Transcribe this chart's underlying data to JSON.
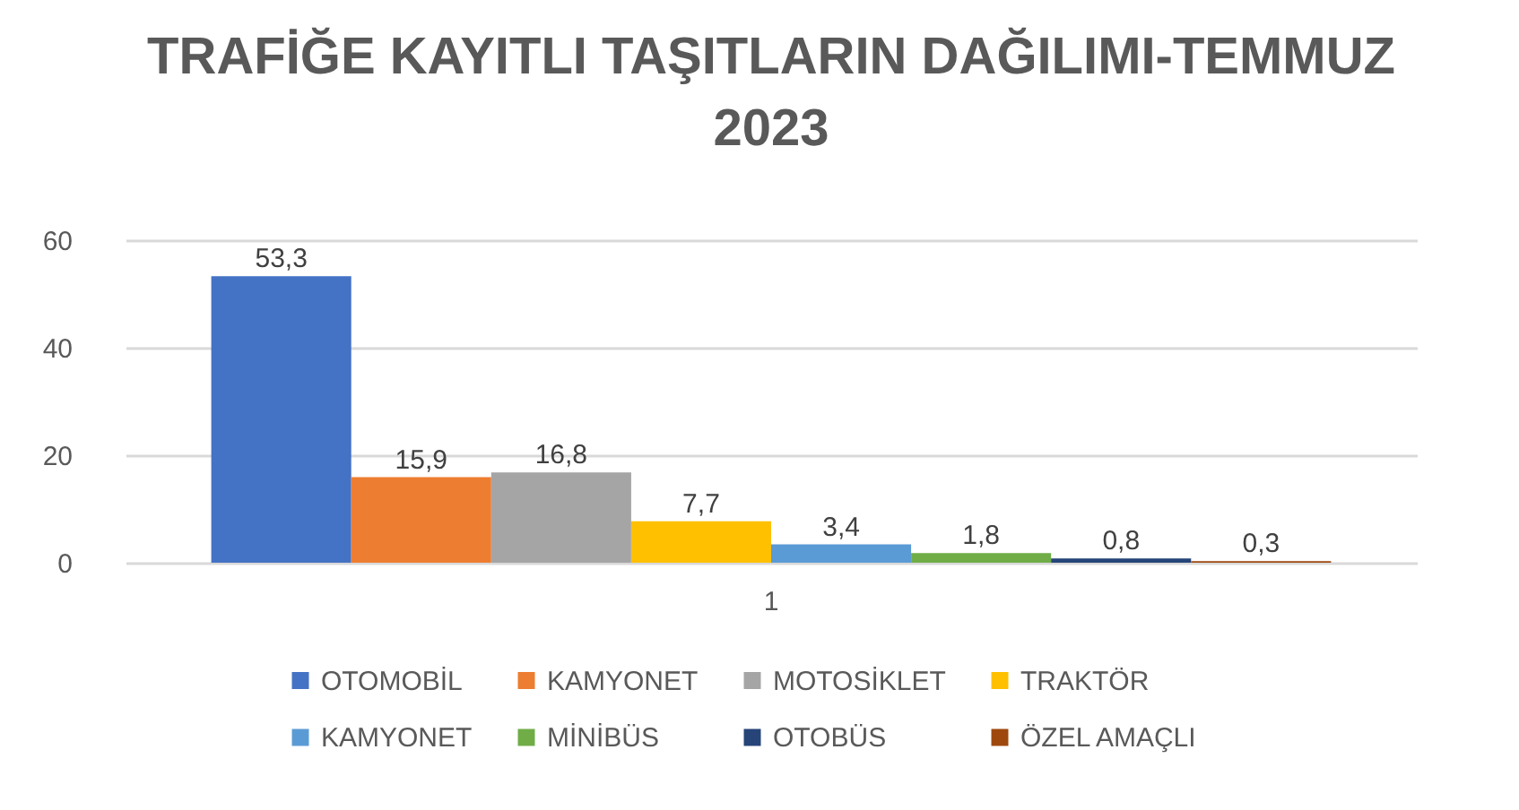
{
  "chart_data": {
    "type": "bar",
    "title": "TRAFİĞE KAYITLI TAŞITLARIN DAĞILIMI-TEMMUZ 2023",
    "categories": [
      "1"
    ],
    "series": [
      {
        "name": "OTOMOBİL",
        "color": "#4472c4",
        "values": [
          53.3
        ],
        "value_labels": [
          "53,3"
        ]
      },
      {
        "name": "KAMYONET",
        "color": "#ed7d31",
        "values": [
          15.9
        ],
        "value_labels": [
          "15,9"
        ]
      },
      {
        "name": "MOTOSİKLET",
        "color": "#a5a5a5",
        "values": [
          16.8
        ],
        "value_labels": [
          "16,8"
        ]
      },
      {
        "name": "TRAKTÖR",
        "color": "#ffc000",
        "values": [
          7.7
        ],
        "value_labels": [
          "7,7"
        ]
      },
      {
        "name": "KAMYONET",
        "color": "#5b9bd5",
        "values": [
          3.4
        ],
        "value_labels": [
          "3,4"
        ]
      },
      {
        "name": "MİNİBÜS",
        "color": "#70ad47",
        "values": [
          1.8
        ],
        "value_labels": [
          "1,8"
        ]
      },
      {
        "name": "OTOBÜS",
        "color": "#264478",
        "values": [
          0.8
        ],
        "value_labels": [
          "0,8"
        ]
      },
      {
        "name": "ÖZEL AMAÇLI",
        "color": "#9e480e",
        "values": [
          0.3
        ],
        "value_labels": [
          "0,3"
        ]
      }
    ],
    "ylim": [
      0,
      60
    ],
    "yticks": [
      0,
      20,
      40,
      60
    ],
    "grid": "y",
    "legend": "bottom"
  }
}
